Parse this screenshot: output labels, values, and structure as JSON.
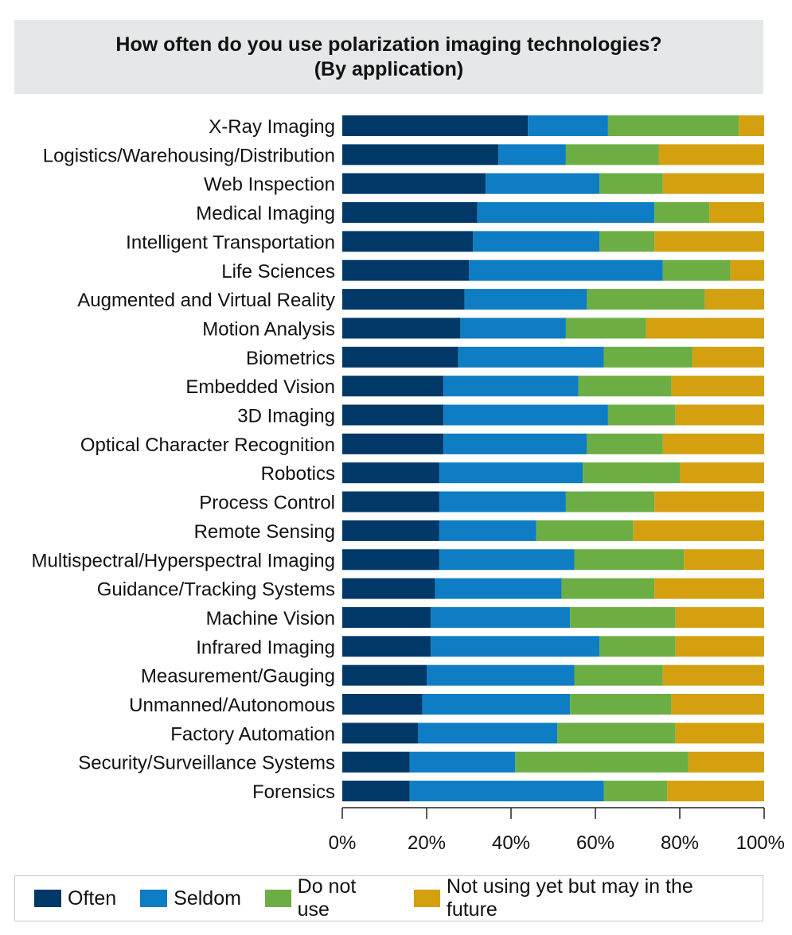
{
  "chart_data": {
    "type": "bar",
    "orientation": "horizontal",
    "stacked": true,
    "title": "How often do you use polarization imaging technologies?",
    "subtitle": "(By application)",
    "categories": [
      "X-Ray Imaging",
      "Logistics/Warehousing/Distribution",
      "Web Inspection",
      "Medical Imaging",
      "Intelligent Transportation",
      "Life Sciences",
      "Augmented and Virtual Reality",
      "Motion Analysis",
      "Biometrics",
      "Embedded Vision",
      "3D Imaging",
      "Optical Character Recognition",
      "Robotics",
      "Process Control",
      "Remote Sensing",
      "Multispectral/Hyperspectral Imaging",
      "Guidance/Tracking Systems",
      "Machine Vision",
      "Infrared Imaging",
      "Measurement/Gauging",
      "Unmanned/Autonomous",
      "Factory Automation",
      "Security/Surveillance Systems",
      "Forensics"
    ],
    "series": [
      {
        "name": "Often",
        "color": "#003868",
        "values": [
          44,
          37,
          34,
          32,
          31,
          30,
          29,
          28,
          27.5,
          24,
          24,
          24,
          23,
          23,
          23,
          23,
          22,
          21,
          21,
          20,
          19,
          18,
          16,
          16
        ]
      },
      {
        "name": "Seldom",
        "color": "#0f7dc4",
        "values": [
          19,
          16,
          27,
          42,
          30,
          46,
          29,
          25,
          34.5,
          32,
          39,
          34,
          34,
          30,
          23,
          32,
          30,
          33,
          40,
          35,
          35,
          33,
          25,
          46
        ]
      },
      {
        "name": "Do not use",
        "color": "#6cae44",
        "values": [
          31,
          22,
          15,
          13,
          13,
          16,
          28,
          19,
          21,
          22,
          16,
          18,
          23,
          21,
          23,
          26,
          22,
          25,
          18,
          21,
          24,
          28,
          41,
          15
        ]
      },
      {
        "name": "Not using yet but may in the future",
        "color": "#d4a010",
        "values": [
          6,
          25,
          24,
          13,
          26,
          8,
          14,
          28,
          17,
          22,
          21,
          24,
          20,
          26,
          31,
          19,
          26,
          21,
          21,
          24,
          22,
          21,
          18,
          23
        ]
      }
    ],
    "xlim": [
      0,
      100
    ],
    "xticks": [
      0,
      20,
      40,
      60,
      80,
      100
    ],
    "xtick_labels": [
      "0%",
      "20%",
      "40%",
      "60%",
      "80%",
      "100%"
    ],
    "xlabel": "",
    "ylabel": "",
    "grid": false,
    "legend_position": "bottom"
  }
}
